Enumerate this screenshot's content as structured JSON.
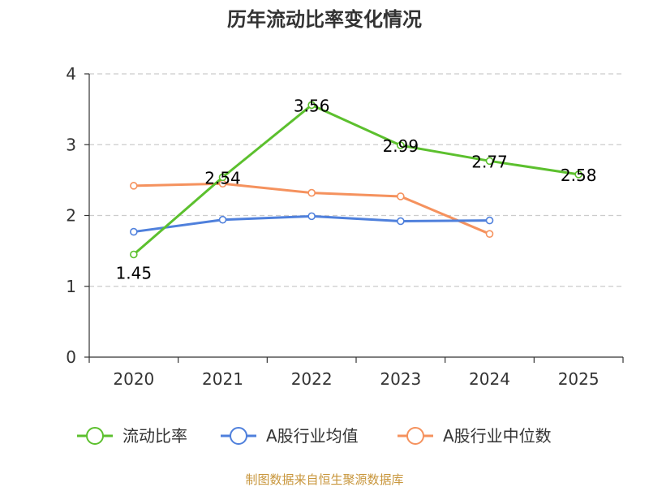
{
  "chart_data": {
    "type": "line",
    "title": "历年流动比率变化情况",
    "categories": [
      "2020",
      "2021",
      "2022",
      "2023",
      "2024",
      "2025"
    ],
    "ylim": [
      0,
      4
    ],
    "yticks": [
      0,
      1,
      2,
      3,
      4
    ],
    "grid": true,
    "legend_position": "bottom",
    "series": [
      {
        "name": "流动比率",
        "color": "#5cc02e",
        "values": [
          1.45,
          2.54,
          3.56,
          2.99,
          2.77,
          2.58
        ],
        "labels": [
          "1.45",
          "2.54",
          "3.56",
          "2.99",
          "2.77",
          "2.58"
        ],
        "show_labels": true
      },
      {
        "name": "A股行业均值",
        "color": "#4f80dc",
        "values": [
          1.77,
          1.94,
          1.99,
          1.92,
          1.93,
          null
        ],
        "show_labels": false
      },
      {
        "name": "A股行业中位数",
        "color": "#f5925e",
        "values": [
          2.42,
          2.45,
          2.32,
          2.27,
          1.74,
          null
        ],
        "show_labels": false
      }
    ]
  },
  "source": {
    "text": "制图数据来自恒生聚源数据库",
    "color": "#c8963c"
  }
}
